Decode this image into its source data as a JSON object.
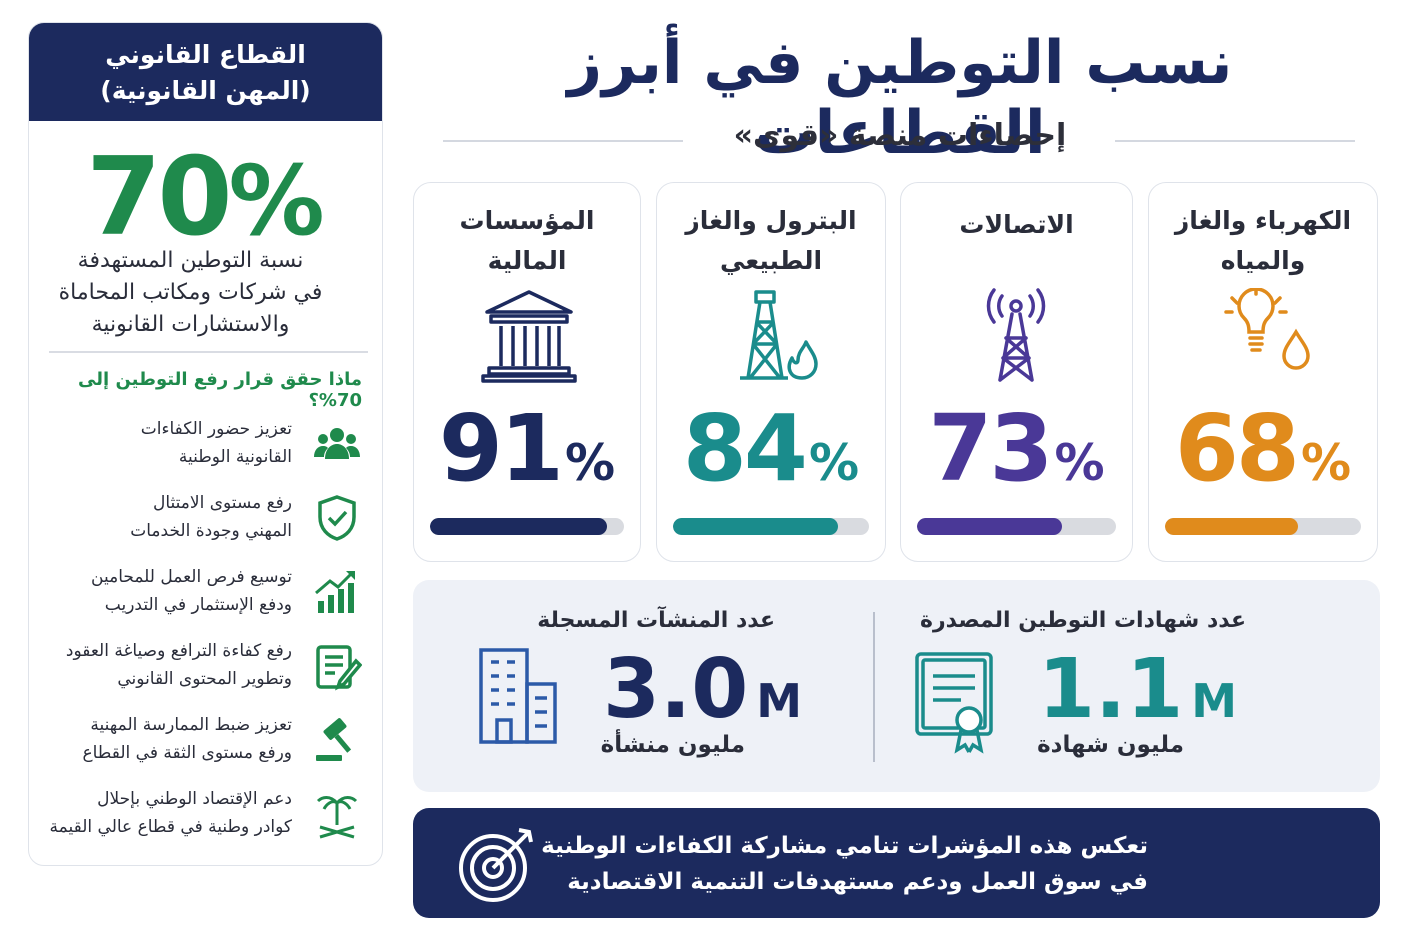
{
  "header": {
    "title": "نسب التوطين في أبرز القطاعات",
    "subtitle": "إحصاءات منصة «قوى»"
  },
  "sectors": [
    {
      "name_lines": [
        "الكهرباء والغاز",
        "والمياه"
      ],
      "value": 68,
      "unit": "%",
      "color": "#e08b1c"
    },
    {
      "name_lines": [
        "الاتصالات"
      ],
      "value": 73,
      "unit": "%",
      "color": "#4a3897"
    },
    {
      "name_lines": [
        "البترول والغاز",
        "الطبيعي"
      ],
      "value": 84,
      "unit": "%",
      "color": "#1a8c8c"
    },
    {
      "name_lines": [
        "المؤسسات",
        "المالية"
      ],
      "value": 91,
      "unit": "%",
      "color": "#1c2a5e"
    }
  ],
  "stats": [
    {
      "label": "عدد شهادات التوطين المصدرة",
      "number": "1.1",
      "suffix": "M",
      "caption": "مليون شهادة",
      "color": "#1a8c8c"
    },
    {
      "label": "عدد المنشآت المسجلة",
      "number": "3.0",
      "suffix": "M",
      "caption": "مليون منشأة",
      "color": "#1c2a5e"
    }
  ],
  "footer": {
    "lines": [
      "تعكس هذه المؤشرات تنامي مشاركة الكفاءات الوطنية",
      "في سوق العمل ودعم مستهدفات التنمية الاقتصادية"
    ]
  },
  "sidebar": {
    "title_lines": [
      "القطاع القانوني",
      "(المهن القانونية)"
    ],
    "value": 70,
    "unit": "%",
    "description_lines": [
      "نسبة التوطين المستهدفة",
      "في شركات ومكاتب المحاماة",
      "والاستشارات القانونية"
    ],
    "question": "ماذا حقق قرار رفع التوطين إلى 70%؟",
    "items": [
      [
        "تعزيز حضور الكفاءات",
        "القانونية الوطنية"
      ],
      [
        "رفع مستوى الامتثال",
        "المهني وجودة الخدمات"
      ],
      [
        "توسيع فرص العمل للمحامين",
        "ودفع الإستثمار في التدريب"
      ],
      [
        "رفع كفاءة الترافع وصياغة العقود",
        "وتطوير المحتوى القانوني"
      ],
      [
        "تعزيز ضبط الممارسة المهنية",
        "ورفع مستوى الثقة في القطاع"
      ],
      [
        "دعم الإقتصاد الوطني بإحلال",
        "كوادر وطنية في قطاع عالي القيمة"
      ]
    ]
  }
}
